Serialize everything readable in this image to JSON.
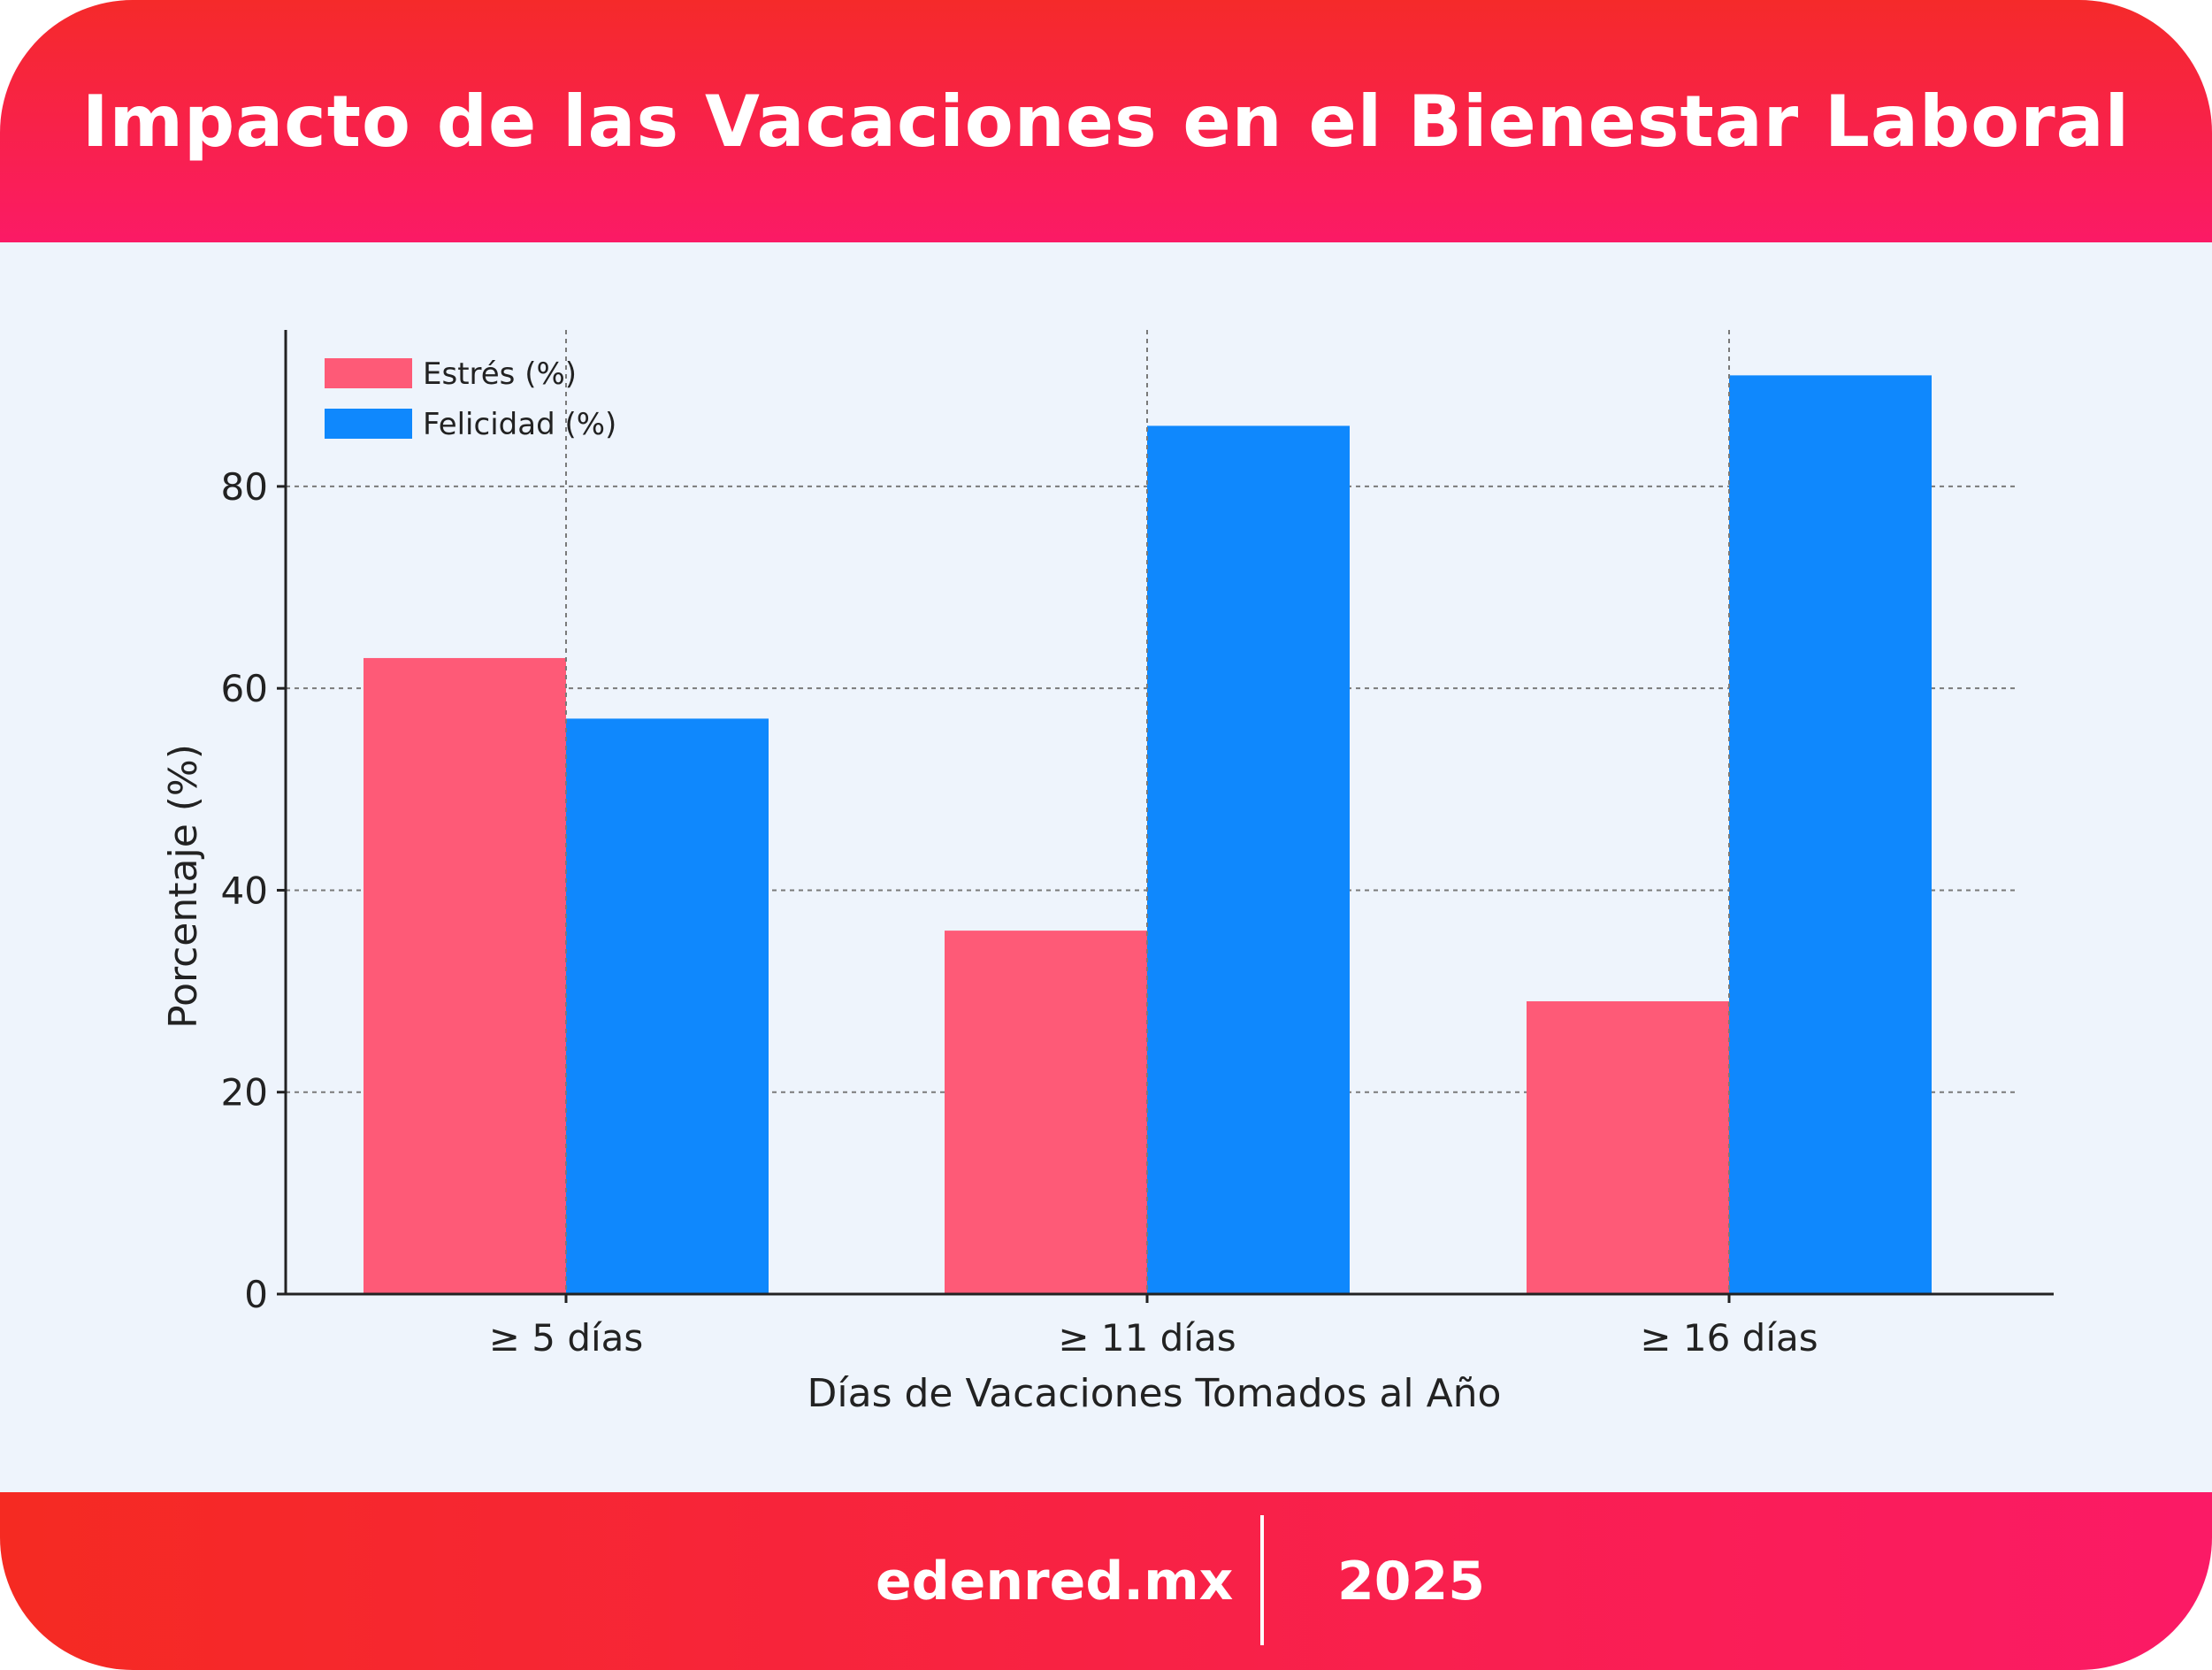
{
  "header": {
    "title": "Impacto de las Vacaciones en el Bienestar Laboral"
  },
  "footer": {
    "site": "edenred.mx",
    "year": "2025"
  },
  "colors": {
    "accent_red": "#f52a2a",
    "accent_pink": "#fb1a66",
    "stress": "#fe5a77",
    "happiness": "#0f88fd",
    "background": "#eef4fc"
  },
  "chart_data": {
    "type": "bar",
    "categories": [
      "≥ 5 días",
      "≥ 11 días",
      "≥ 16 días"
    ],
    "series": [
      {
        "name": "Estrés (%)",
        "values": [
          63,
          36,
          29
        ],
        "color": "#fe5a77"
      },
      {
        "name": "Felicidad (%)",
        "values": [
          57,
          86,
          91
        ],
        "color": "#0f88fd"
      }
    ],
    "xlabel": "Días de Vacaciones Tomados al Año",
    "ylabel": "Porcentaje (%)",
    "ylim": [
      0,
      95.5
    ],
    "yticks": [
      0,
      20,
      40,
      60,
      80
    ],
    "grid": "dashed",
    "legend_position": "top-left"
  }
}
